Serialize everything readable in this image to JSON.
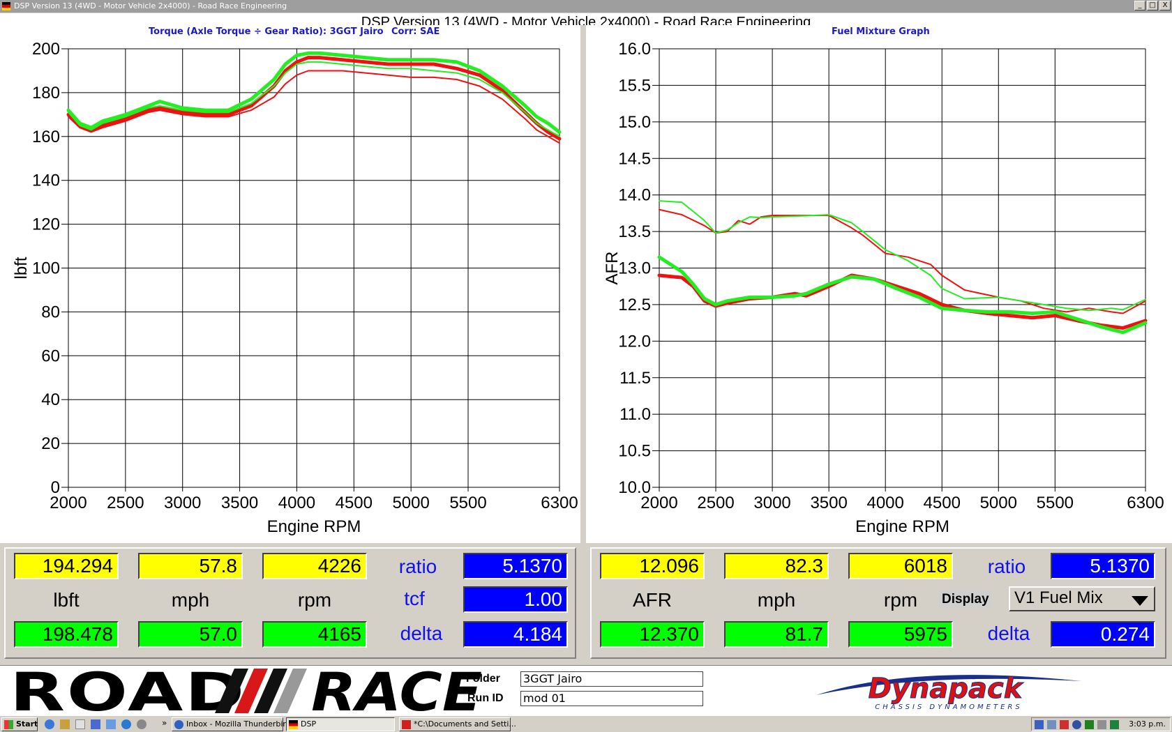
{
  "window": {
    "title": "DSP Version 13 (4WD - Motor Vehicle 2x4000) - Road Race Engineering",
    "header": "DSP Version 13 (4WD - Motor Vehicle 2x4000) - Road Race Engineering",
    "buttons": [
      "_",
      "□",
      "X"
    ]
  },
  "left_chart": {
    "caption": "Torque (Axle Torque ÷ Gear Ratio): 3GGT Jairo",
    "corr": "Corr: SAE"
  },
  "right_chart": {
    "caption": "Fuel Mixture Graph"
  },
  "colors": {
    "red": "#ee1111",
    "green": "#22ee22",
    "blue_box": "#0000ff",
    "yellow_box": "#ffff00"
  },
  "chart_data": [
    {
      "type": "line",
      "title": "Torque (Axle Torque ÷ Gear Ratio): 3GGT Jairo",
      "xlabel": "Engine RPM",
      "ylabel": "lbft",
      "xlim": [
        2000,
        6300
      ],
      "ylim": [
        0,
        200
      ],
      "xticks": [
        2000,
        2500,
        3000,
        3500,
        4000,
        4500,
        5000,
        5500,
        6300
      ],
      "yticks": [
        0,
        20,
        40,
        60,
        80,
        100,
        120,
        140,
        160,
        180,
        200
      ],
      "grid": true,
      "series": [
        {
          "color": "#ee1111",
          "width": 2,
          "x": [
            2000,
            2100,
            2200,
            2300,
            2500,
            2700,
            2800,
            3000,
            3200,
            3400,
            3600,
            3800,
            3900,
            4000,
            4100,
            4200,
            4400,
            4600,
            4800,
            5000,
            5200,
            5400,
            5600,
            5800,
            6000,
            6100,
            6200,
            6300
          ],
          "y": [
            169,
            164,
            162,
            164,
            167,
            171,
            172,
            170,
            169,
            169,
            172,
            178,
            184,
            188,
            190,
            190,
            190,
            189,
            188,
            187,
            187,
            186,
            183,
            177,
            168,
            163,
            160,
            157
          ]
        },
        {
          "color": "#ee1111",
          "width": 5,
          "x": [
            2000,
            2100,
            2200,
            2300,
            2500,
            2700,
            2800,
            3000,
            3200,
            3400,
            3600,
            3800,
            3900,
            4000,
            4100,
            4200,
            4400,
            4600,
            4800,
            5000,
            5200,
            5400,
            5600,
            5800,
            6000,
            6100,
            6200,
            6300
          ],
          "y": [
            170,
            165,
            163,
            165,
            168,
            172,
            173,
            171,
            170,
            170,
            174,
            183,
            190,
            194,
            196,
            196,
            195,
            194,
            193,
            193,
            193,
            191,
            188,
            181,
            171,
            166,
            162,
            159
          ]
        },
        {
          "color": "#22ee22",
          "width": 2,
          "x": [
            2000,
            2100,
            2200,
            2300,
            2500,
            2700,
            2800,
            3000,
            3200,
            3400,
            3600,
            3800,
            3900,
            4000,
            4100,
            4200,
            4400,
            4600,
            4800,
            5000,
            5200,
            5400,
            5600,
            5800,
            6000,
            6100,
            6200,
            6300
          ],
          "y": [
            171,
            165,
            163,
            166,
            169,
            173,
            174,
            172,
            171,
            171,
            175,
            183,
            189,
            193,
            194,
            194,
            193,
            192,
            191,
            191,
            190,
            189,
            186,
            180,
            171,
            166,
            163,
            160
          ]
        },
        {
          "color": "#22ee22",
          "width": 5,
          "x": [
            2000,
            2100,
            2200,
            2300,
            2500,
            2700,
            2800,
            3000,
            3200,
            3400,
            3600,
            3800,
            3900,
            4000,
            4100,
            4200,
            4400,
            4600,
            4800,
            5000,
            5200,
            5400,
            5600,
            5800,
            6000,
            6100,
            6200,
            6300
          ],
          "y": [
            172,
            166,
            164,
            167,
            170,
            174,
            176,
            173,
            172,
            172,
            177,
            186,
            193,
            197,
            198,
            198,
            197,
            196,
            195,
            195,
            195,
            194,
            190,
            183,
            174,
            169,
            166,
            162
          ]
        }
      ]
    },
    {
      "type": "line",
      "title": "Fuel Mixture Graph",
      "xlabel": "Engine RPM",
      "ylabel": "AFR",
      "xlim": [
        2000,
        6300
      ],
      "ylim": [
        10.0,
        16.0
      ],
      "xticks": [
        2000,
        2500,
        3000,
        3500,
        4000,
        4500,
        5000,
        5500,
        6300
      ],
      "yticks": [
        10.0,
        10.5,
        11.0,
        11.5,
        12.0,
        12.5,
        13.0,
        13.5,
        14.0,
        14.5,
        15.0,
        15.5,
        16.0
      ],
      "grid": true,
      "series": [
        {
          "color": "#ee1111",
          "width": 2,
          "x": [
            2000,
            2200,
            2400,
            2500,
            2600,
            2700,
            2800,
            2900,
            3000,
            3200,
            3500,
            3700,
            3800,
            4000,
            4200,
            4400,
            4500,
            4700,
            5000,
            5200,
            5400,
            5600,
            5800,
            6000,
            6100,
            6300
          ],
          "y": [
            13.8,
            13.73,
            13.58,
            13.48,
            13.5,
            13.65,
            13.6,
            13.7,
            13.72,
            13.72,
            13.72,
            13.55,
            13.45,
            13.2,
            13.15,
            13.05,
            12.9,
            12.7,
            12.6,
            12.55,
            12.45,
            12.4,
            12.45,
            12.4,
            12.38,
            12.55
          ]
        },
        {
          "color": "#22ee22",
          "width": 2,
          "x": [
            2000,
            2200,
            2400,
            2500,
            2600,
            2700,
            2800,
            2900,
            3000,
            3200,
            3500,
            3700,
            3800,
            4000,
            4200,
            4400,
            4500,
            4700,
            5000,
            5200,
            5400,
            5600,
            5800,
            6000,
            6100,
            6300
          ],
          "y": [
            13.92,
            13.9,
            13.65,
            13.48,
            13.52,
            13.62,
            13.7,
            13.69,
            13.7,
            13.71,
            13.73,
            13.62,
            13.5,
            13.25,
            13.1,
            12.9,
            12.72,
            12.58,
            12.6,
            12.55,
            12.5,
            12.45,
            12.42,
            12.45,
            12.43,
            12.57
          ]
        },
        {
          "color": "#ee1111",
          "width": 5,
          "x": [
            2000,
            2200,
            2300,
            2400,
            2500,
            2600,
            2800,
            3000,
            3200,
            3300,
            3500,
            3700,
            3900,
            4100,
            4300,
            4500,
            4700,
            4900,
            5100,
            5300,
            5500,
            5700,
            5900,
            6100,
            6300
          ],
          "y": [
            12.9,
            12.87,
            12.75,
            12.55,
            12.48,
            12.52,
            12.58,
            12.6,
            12.65,
            12.62,
            12.75,
            12.9,
            12.85,
            12.75,
            12.65,
            12.5,
            12.42,
            12.38,
            12.35,
            12.32,
            12.35,
            12.28,
            12.22,
            12.18,
            12.28
          ]
        },
        {
          "color": "#22ee22",
          "width": 5,
          "x": [
            2000,
            2200,
            2300,
            2400,
            2500,
            2600,
            2800,
            3000,
            3200,
            3300,
            3500,
            3700,
            3900,
            4100,
            4300,
            4500,
            4700,
            4900,
            5100,
            5300,
            5500,
            5700,
            5900,
            6100,
            6300
          ],
          "y": [
            13.15,
            12.95,
            12.78,
            12.58,
            12.5,
            12.55,
            12.6,
            12.6,
            12.62,
            12.65,
            12.78,
            12.88,
            12.85,
            12.72,
            12.6,
            12.45,
            12.42,
            12.4,
            12.4,
            12.38,
            12.4,
            12.3,
            12.2,
            12.12,
            12.25
          ]
        }
      ]
    }
  ],
  "readouts_left": {
    "yellow": [
      "194.294",
      "57.8",
      "4226"
    ],
    "units": [
      "lbft",
      "mph",
      "rpm"
    ],
    "green": [
      "198.478",
      "57.0",
      "4165"
    ],
    "ratio_label": "ratio",
    "ratio_value": "5.1370",
    "tcf_label": "tcf",
    "tcf_value": "1.00",
    "delta_label": "delta",
    "delta_value": "4.184"
  },
  "readouts_right": {
    "yellow": [
      "12.096",
      "82.3",
      "6018"
    ],
    "units": [
      "AFR",
      "mph",
      "rpm"
    ],
    "green": [
      "12.370",
      "81.7",
      "5975"
    ],
    "ratio_label": "ratio",
    "ratio_value": "5.1370",
    "display_label": "Display",
    "display_value": "V1 Fuel Mix",
    "delta_label": "delta",
    "delta_value": "0.274"
  },
  "footer": {
    "logo_left": "ROAD",
    "logo_right": "RACE",
    "folder_label": "Folder",
    "folder_value": "3GGT Jairo",
    "runid_label": "Run ID",
    "runid_value": "mod 01",
    "brand": "Dynapack",
    "brand_sub": "CHASSIS DYNAMOMETERS"
  },
  "taskbar": {
    "start": "Start",
    "chevron": "»",
    "tasks": [
      "Inbox - Mozilla Thunderbird",
      "DSP",
      "*C:\\Documents and Setti..."
    ],
    "clock": "3:03 p.m."
  }
}
